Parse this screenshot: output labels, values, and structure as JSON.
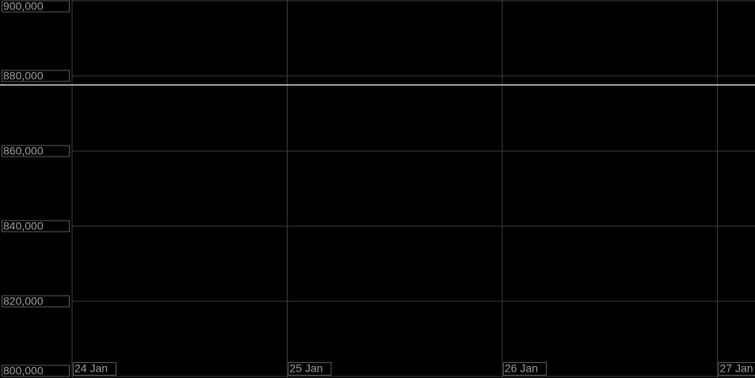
{
  "chart_data": {
    "type": "line",
    "categories": [
      "24 Jan",
      "25 Jan",
      "26 Jan",
      "27 Jan"
    ],
    "reference_lines": [
      {
        "value": 877700,
        "color": "#ffffff"
      }
    ],
    "ylim": [
      800000,
      900000
    ],
    "yticks": [
      {
        "value": 800000,
        "label": "800,000"
      },
      {
        "value": 820000,
        "label": "820,000"
      },
      {
        "value": 840000,
        "label": "840,000"
      },
      {
        "value": 860000,
        "label": "860,000"
      },
      {
        "value": 880000,
        "label": "880,000"
      },
      {
        "value": 900000,
        "label": "900,000"
      }
    ],
    "grid": true
  }
}
